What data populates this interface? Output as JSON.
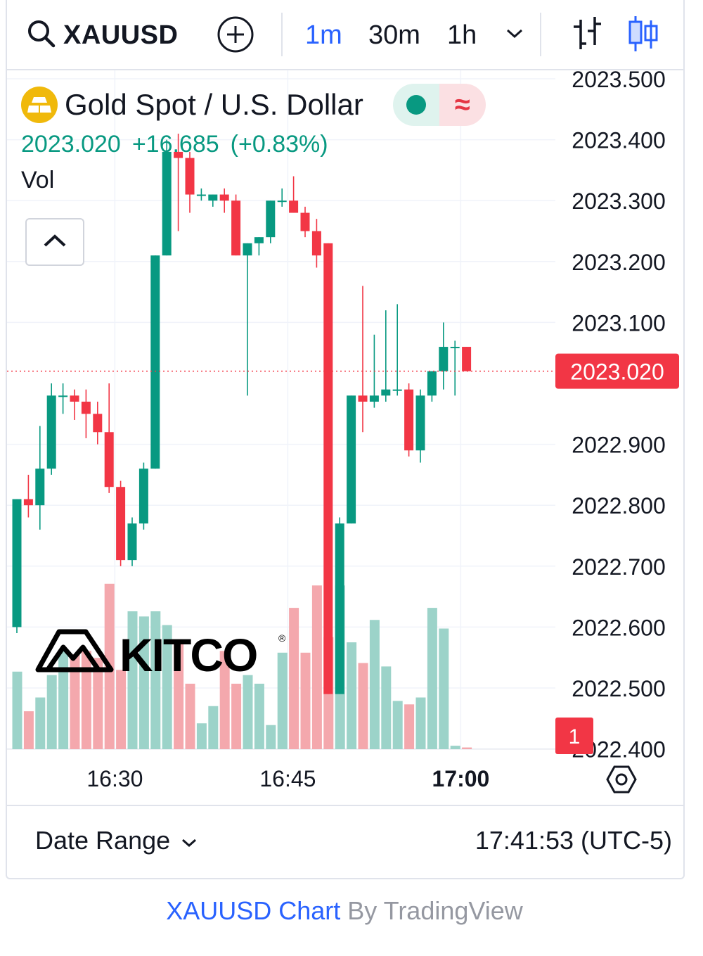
{
  "toolbar": {
    "symbol": "XAUUSD",
    "intervals": [
      "1m",
      "30m",
      "1h"
    ],
    "active_interval": "1m",
    "icons": {
      "search": "search-icon",
      "add": "add-circle-icon",
      "more": "chevron-down-icon",
      "bar_style": "bar-chart-style-icon",
      "candle_style": "candlestick-style-icon"
    }
  },
  "legend": {
    "title": "Gold Spot / U.S. Dollar",
    "last": "2023.020",
    "change": "+16.685",
    "change_pct": "(+0.83%)",
    "volume_label": "Vol",
    "market_status_icon": "market-open-dot-icon",
    "delayed_icon": "approx-data-icon"
  },
  "watermark": {
    "text": "KITCO"
  },
  "chart_data": {
    "type": "candlestick",
    "y_ticks": [
      "2023.500",
      "2023.400",
      "2023.300",
      "2023.200",
      "2023.100",
      "2022.900",
      "2022.800",
      "2022.700",
      "2022.600",
      "2022.500",
      "2022.400"
    ],
    "ylim": [
      2022.39,
      2023.51
    ],
    "x_ticks": [
      "16:30",
      "16:45",
      "17:00"
    ],
    "last_price_label": "2023.020",
    "events_badge": "1",
    "candles": [
      {
        "o": 2022.6,
        "h": 2022.81,
        "l": 2022.59,
        "c": 2022.81
      },
      {
        "o": 2022.81,
        "h": 2022.85,
        "l": 2022.78,
        "c": 2022.8
      },
      {
        "o": 2022.8,
        "h": 2022.93,
        "l": 2022.76,
        "c": 2022.86
      },
      {
        "o": 2022.86,
        "h": 2023.0,
        "l": 2022.85,
        "c": 2022.98
      },
      {
        "o": 2022.98,
        "h": 2023.0,
        "l": 2022.95,
        "c": 2022.98
      },
      {
        "o": 2022.98,
        "h": 2022.99,
        "l": 2022.94,
        "c": 2022.97
      },
      {
        "o": 2022.97,
        "h": 2022.99,
        "l": 2022.91,
        "c": 2022.95
      },
      {
        "o": 2022.95,
        "h": 2022.97,
        "l": 2022.9,
        "c": 2022.92
      },
      {
        "o": 2022.92,
        "h": 2023.0,
        "l": 2022.82,
        "c": 2022.83
      },
      {
        "o": 2022.83,
        "h": 2022.84,
        "l": 2022.7,
        "c": 2022.71
      },
      {
        "o": 2022.71,
        "h": 2022.78,
        "l": 2022.7,
        "c": 2022.77
      },
      {
        "o": 2022.77,
        "h": 2022.87,
        "l": 2022.76,
        "c": 2022.86
      },
      {
        "o": 2022.86,
        "h": 2023.21,
        "l": 2022.86,
        "c": 2023.21
      },
      {
        "o": 2023.21,
        "h": 2023.4,
        "l": 2023.21,
        "c": 2023.38
      },
      {
        "o": 2023.38,
        "h": 2023.41,
        "l": 2023.25,
        "c": 2023.37
      },
      {
        "o": 2023.37,
        "h": 2023.38,
        "l": 2023.28,
        "c": 2023.31
      },
      {
        "o": 2023.31,
        "h": 2023.32,
        "l": 2023.3,
        "c": 2023.31
      },
      {
        "o": 2023.3,
        "h": 2023.31,
        "l": 2023.29,
        "c": 2023.31
      },
      {
        "o": 2023.31,
        "h": 2023.32,
        "l": 2023.28,
        "c": 2023.3
      },
      {
        "o": 2023.3,
        "h": 2023.31,
        "l": 2023.21,
        "c": 2023.21
      },
      {
        "o": 2023.21,
        "h": 2023.23,
        "l": 2022.98,
        "c": 2023.23
      },
      {
        "o": 2023.23,
        "h": 2023.24,
        "l": 2023.21,
        "c": 2023.24
      },
      {
        "o": 2023.24,
        "h": 2023.3,
        "l": 2023.23,
        "c": 2023.3
      },
      {
        "o": 2023.3,
        "h": 2023.32,
        "l": 2023.29,
        "c": 2023.3
      },
      {
        "o": 2023.3,
        "h": 2023.34,
        "l": 2023.28,
        "c": 2023.28
      },
      {
        "o": 2023.28,
        "h": 2023.29,
        "l": 2023.24,
        "c": 2023.25
      },
      {
        "o": 2023.25,
        "h": 2023.27,
        "l": 2023.19,
        "c": 2023.21
      },
      {
        "o": 2023.23,
        "h": 2023.23,
        "l": 2022.49,
        "c": 2022.49
      },
      {
        "o": 2022.49,
        "h": 2022.78,
        "l": 2022.49,
        "c": 2022.77
      },
      {
        "o": 2022.77,
        "h": 2022.98,
        "l": 2022.77,
        "c": 2022.98
      },
      {
        "o": 2022.98,
        "h": 2023.16,
        "l": 2022.92,
        "c": 2022.97
      },
      {
        "o": 2022.97,
        "h": 2023.08,
        "l": 2022.96,
        "c": 2022.98
      },
      {
        "o": 2022.98,
        "h": 2023.12,
        "l": 2022.97,
        "c": 2022.99
      },
      {
        "o": 2022.99,
        "h": 2023.13,
        "l": 2022.98,
        "c": 2022.99
      },
      {
        "o": 2022.99,
        "h": 2023.0,
        "l": 2022.88,
        "c": 2022.89
      },
      {
        "o": 2022.89,
        "h": 2022.99,
        "l": 2022.87,
        "c": 2022.98
      },
      {
        "o": 2022.98,
        "h": 2023.02,
        "l": 2022.97,
        "c": 2023.02
      },
      {
        "o": 2023.02,
        "h": 2023.1,
        "l": 2022.99,
        "c": 2023.06
      },
      {
        "o": 2023.06,
        "h": 2023.07,
        "l": 2022.98,
        "c": 2023.06
      },
      {
        "o": 2023.06,
        "h": 2023.06,
        "l": 2023.02,
        "c": 2023.02
      }
    ],
    "volume": [
      0.45,
      0.22,
      0.3,
      0.43,
      0.57,
      0.55,
      0.57,
      0.53,
      0.96,
      0.46,
      0.8,
      0.77,
      0.8,
      0.72,
      0.62,
      0.38,
      0.15,
      0.25,
      0.57,
      0.38,
      0.43,
      0.38,
      0.14,
      0.56,
      0.82,
      0.56,
      0.95,
      0.65,
      0.95,
      0.62,
      0.5,
      0.75,
      0.48,
      0.28,
      0.26,
      0.3,
      0.82,
      0.7,
      0.02,
      0.01
    ]
  },
  "colors": {
    "up": "#089981",
    "down": "#f23645",
    "up_volume": "#9cd3c9",
    "down_volume": "#f4a8ad",
    "accent": "#2962ff",
    "price_label_bg": "#f23645",
    "gold": "#f0b90b"
  },
  "footer": {
    "date_range_label": "Date Range",
    "clock": "17:41:53 (UTC-5)",
    "settings_icon": "chart-settings-icon"
  },
  "attribution": {
    "symbol_chart": "XAUUSD Chart",
    "by": "By TradingView"
  }
}
